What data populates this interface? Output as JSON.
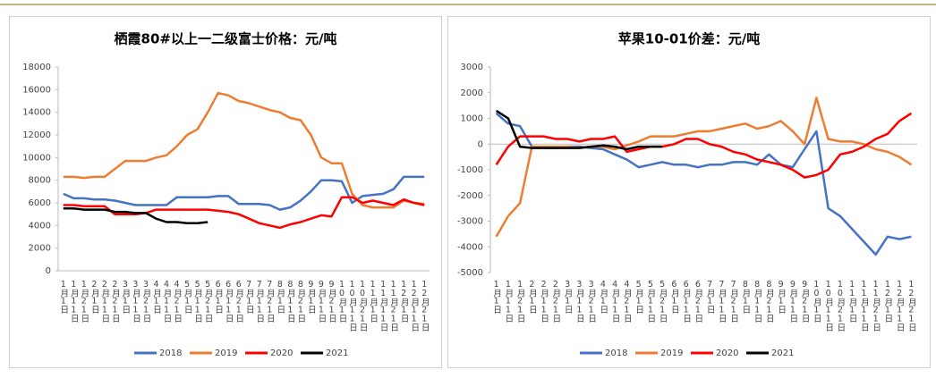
{
  "chart_data": [
    {
      "type": "line",
      "title": "栖霞80#以上一二级富士价格：元/吨",
      "categories": [
        "1月1日",
        "1月11日",
        "1月21日",
        "2月1日",
        "2月11日",
        "2月21日",
        "3月1日",
        "3月11日",
        "3月21日",
        "4月1日",
        "4月11日",
        "4月21日",
        "5月1日",
        "5月11日",
        "5月21日",
        "6月1日",
        "6月11日",
        "6月21日",
        "7月1日",
        "7月11日",
        "7月21日",
        "8月1日",
        "8月11日",
        "8月21日",
        "9月1日",
        "9月11日",
        "9月21日",
        "10月1日",
        "10月11日",
        "10月21日",
        "11月1日",
        "11月11日",
        "11月21日",
        "12月1日",
        "12月11日",
        "12月21日"
      ],
      "ylim": [
        0,
        18000
      ],
      "yticks": [
        0,
        2000,
        4000,
        6000,
        8000,
        10000,
        12000,
        14000,
        16000,
        18000
      ],
      "series": [
        {
          "name": "2018",
          "color": "#4472c4",
          "values": [
            6800,
            6400,
            6400,
            6300,
            6300,
            6200,
            6000,
            5800,
            5800,
            5800,
            5800,
            6500,
            6500,
            6500,
            6500,
            6600,
            6600,
            5900,
            5900,
            5900,
            5800,
            5400,
            5600,
            6200,
            7000,
            8000,
            8000,
            7900,
            6000,
            6600,
            6700,
            6800,
            7200,
            8300,
            8300,
            8300
          ]
        },
        {
          "name": "2019",
          "color": "#ed7d31",
          "values": [
            8300,
            8300,
            8200,
            8300,
            8300,
            9000,
            9700,
            9700,
            9700,
            10000,
            10200,
            11000,
            12000,
            12500,
            14000,
            15700,
            15500,
            15000,
            14800,
            14500,
            14200,
            14000,
            13500,
            13300,
            12000,
            10000,
            9500,
            9500,
            6800,
            5800,
            5600,
            5600,
            5600,
            6200,
            6000,
            5900
          ]
        },
        {
          "name": "2020",
          "color": "#ff0000",
          "values": [
            5800,
            5800,
            5700,
            5700,
            5700,
            5000,
            5000,
            5000,
            5100,
            5400,
            5400,
            5400,
            5400,
            5400,
            5400,
            5300,
            5200,
            5000,
            4600,
            4200,
            4000,
            3800,
            4100,
            4300,
            4600,
            4900,
            4800,
            6500,
            6500,
            6000,
            6200,
            6000,
            5800,
            6300,
            6000,
            5800
          ]
        },
        {
          "name": "2021",
          "color": "#000000",
          "values": [
            5500,
            5500,
            5400,
            5400,
            5400,
            5200,
            5200,
            5100,
            5100,
            4600,
            4300,
            4300,
            4200,
            4200,
            4300,
            null,
            null,
            null,
            null,
            null,
            null,
            null,
            null,
            null,
            null,
            null,
            null,
            null,
            null,
            null,
            null,
            null,
            null,
            null,
            null,
            null
          ]
        }
      ]
    },
    {
      "type": "line",
      "title": "苹果10-01价差：元/吨",
      "categories": [
        "1月1日",
        "1月11日",
        "1月21日",
        "2月1日",
        "2月11日",
        "2月21日",
        "3月1日",
        "3月11日",
        "3月21日",
        "4月1日",
        "4月11日",
        "4月21日",
        "5月1日",
        "5月11日",
        "5月21日",
        "6月1日",
        "6月11日",
        "6月21日",
        "7月1日",
        "7月11日",
        "7月21日",
        "8月1日",
        "8月11日",
        "8月21日",
        "9月1日",
        "9月11日",
        "9月21日",
        "10月1日",
        "10月11日",
        "10月21日",
        "11月1日",
        "11月11日",
        "11月21日",
        "12月1日",
        "12月11日",
        "12月21日"
      ],
      "ylim": [
        -5000,
        3000
      ],
      "yticks": [
        -5000,
        -4000,
        -3000,
        -2000,
        -1000,
        0,
        1000,
        2000,
        3000
      ],
      "series": [
        {
          "name": "2018",
          "color": "#4472c4",
          "values": [
            1200,
            800,
            700,
            -100,
            -150,
            -150,
            -100,
            -100,
            -150,
            -200,
            -400,
            -600,
            -900,
            -800,
            -700,
            -800,
            -800,
            -900,
            -800,
            -800,
            -700,
            -700,
            -800,
            -400,
            -800,
            -900,
            -200,
            500,
            -2500,
            -2800,
            -3300,
            -3800,
            -4300,
            -3600,
            -3700,
            -3600
          ]
        },
        {
          "name": "2019",
          "color": "#ed7d31",
          "values": [
            -3600,
            -2800,
            -2300,
            -100,
            -100,
            -100,
            -100,
            -150,
            -100,
            -100,
            -200,
            -50,
            100,
            300,
            300,
            300,
            400,
            500,
            500,
            600,
            700,
            800,
            600,
            700,
            900,
            500,
            0,
            1800,
            200,
            100,
            100,
            0,
            -200,
            -300,
            -500,
            -800
          ]
        },
        {
          "name": "2020",
          "color": "#ff0000",
          "values": [
            -800,
            -100,
            300,
            300,
            300,
            200,
            200,
            100,
            200,
            200,
            300,
            -300,
            -200,
            -100,
            -100,
            0,
            200,
            200,
            0,
            -100,
            -300,
            -400,
            -600,
            -700,
            -800,
            -1000,
            -1300,
            -1200,
            -1000,
            -400,
            -300,
            -100,
            200,
            400,
            900,
            1200
          ]
        },
        {
          "name": "2021",
          "color": "#000000",
          "values": [
            1300,
            1000,
            -100,
            -150,
            -150,
            -150,
            -150,
            -150,
            -100,
            -50,
            -100,
            -200,
            -100,
            -100,
            -100,
            null,
            null,
            null,
            null,
            null,
            null,
            null,
            null,
            null,
            null,
            null,
            null,
            null,
            null,
            null,
            null,
            null,
            null,
            null,
            null,
            null
          ]
        }
      ]
    }
  ]
}
